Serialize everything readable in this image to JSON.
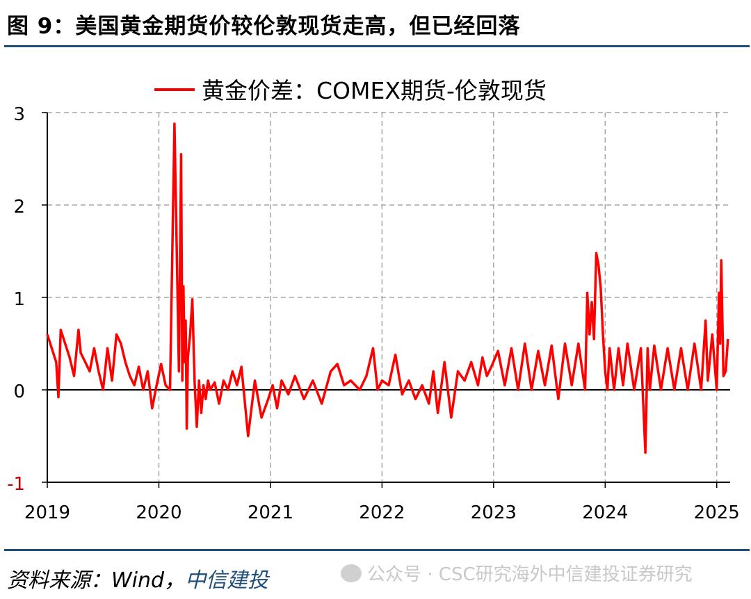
{
  "figure": {
    "title": "图 9：美国黄金期货价较伦敦现货走高，但已经回落"
  },
  "source": {
    "prefix": "资料来源：Wind，",
    "brand": "中信建投"
  },
  "watermark": {
    "text": "公众号 · CSC研究海外中信建投证券研究"
  },
  "colors": {
    "series": "#ff0000",
    "axis": "#000000",
    "grid": "#a6a6a6",
    "rule": "#1f4e79"
  },
  "chart_data": {
    "type": "line",
    "legend_position": "top-center",
    "grid": true,
    "ylim": [
      -1,
      3
    ],
    "yticks": [
      "3",
      "2",
      "1",
      "0",
      "-1"
    ],
    "xlim": [
      2019.0,
      2025.12
    ],
    "xticks": [
      "2019",
      "2020",
      "2021",
      "2022",
      "2023",
      "2024",
      "2025"
    ],
    "series": [
      {
        "name": "黄金价差：COMEX期货-伦敦现货",
        "x": [
          2019.0,
          2019.04,
          2019.08,
          2019.1,
          2019.12,
          2019.16,
          2019.2,
          2019.24,
          2019.28,
          2019.3,
          2019.34,
          2019.38,
          2019.42,
          2019.46,
          2019.5,
          2019.54,
          2019.58,
          2019.62,
          2019.66,
          2019.7,
          2019.74,
          2019.78,
          2019.82,
          2019.86,
          2019.9,
          2019.94,
          2019.98,
          2020.02,
          2020.06,
          2020.1,
          2020.14,
          2020.18,
          2020.2,
          2020.21,
          2020.22,
          2020.23,
          2020.24,
          2020.25,
          2020.26,
          2020.28,
          2020.3,
          2020.32,
          2020.34,
          2020.36,
          2020.38,
          2020.4,
          2020.42,
          2020.44,
          2020.46,
          2020.5,
          2020.54,
          2020.58,
          2020.62,
          2020.66,
          2020.7,
          2020.74,
          2020.8,
          2020.86,
          2020.92,
          2020.98,
          2021.02,
          2021.06,
          2021.1,
          2021.16,
          2021.22,
          2021.3,
          2021.38,
          2021.46,
          2021.54,
          2021.6,
          2021.66,
          2021.72,
          2021.8,
          2021.86,
          2021.92,
          2021.96,
          2022.0,
          2022.06,
          2022.12,
          2022.18,
          2022.24,
          2022.3,
          2022.36,
          2022.42,
          2022.46,
          2022.5,
          2022.56,
          2022.62,
          2022.68,
          2022.74,
          2022.8,
          2022.86,
          2022.9,
          2022.94,
          2022.98,
          2023.04,
          2023.1,
          2023.16,
          2023.22,
          2023.28,
          2023.34,
          2023.4,
          2023.46,
          2023.52,
          2023.58,
          2023.64,
          2023.7,
          2023.76,
          2023.82,
          2023.84,
          2023.86,
          2023.88,
          2023.9,
          2023.92,
          2023.94,
          2023.96,
          2023.98,
          2024.0,
          2024.02,
          2024.04,
          2024.08,
          2024.12,
          2024.16,
          2024.2,
          2024.26,
          2024.32,
          2024.36,
          2024.38,
          2024.4,
          2024.44,
          2024.5,
          2024.56,
          2024.62,
          2024.68,
          2024.74,
          2024.8,
          2024.86,
          2024.9,
          2024.92,
          2024.96,
          2025.0,
          2025.02,
          2025.03,
          2025.04,
          2025.06,
          2025.08,
          2025.1
        ],
        "values": [
          0.6,
          0.45,
          0.3,
          -0.08,
          0.65,
          0.5,
          0.35,
          0.15,
          0.65,
          0.4,
          0.3,
          0.2,
          0.45,
          0.2,
          0.0,
          0.45,
          0.1,
          0.6,
          0.5,
          0.3,
          0.15,
          0.05,
          0.25,
          0.0,
          0.2,
          -0.2,
          0.05,
          0.28,
          0.05,
          0.0,
          2.88,
          0.2,
          2.55,
          0.1,
          1.12,
          0.3,
          0.75,
          -0.42,
          0.35,
          0.6,
          0.98,
          0.1,
          -0.4,
          0.1,
          -0.25,
          0.05,
          -0.1,
          0.1,
          0.0,
          0.08,
          -0.15,
          0.1,
          0.0,
          0.2,
          0.05,
          0.25,
          -0.5,
          0.1,
          -0.3,
          -0.1,
          0.05,
          -0.2,
          0.1,
          -0.05,
          0.15,
          -0.1,
          0.1,
          -0.15,
          0.2,
          0.28,
          0.05,
          0.1,
          0.0,
          0.15,
          0.45,
          0.0,
          0.1,
          0.05,
          0.38,
          -0.05,
          0.1,
          -0.1,
          0.05,
          -0.15,
          0.2,
          -0.25,
          0.3,
          -0.3,
          0.2,
          0.1,
          0.3,
          0.05,
          0.35,
          0.15,
          0.25,
          0.42,
          0.05,
          0.45,
          0.0,
          0.5,
          0.0,
          0.42,
          0.05,
          0.48,
          -0.1,
          0.5,
          0.05,
          0.5,
          0.0,
          1.05,
          0.6,
          0.95,
          0.55,
          1.48,
          1.35,
          1.1,
          0.6,
          0.2,
          0.0,
          0.45,
          0.0,
          0.45,
          0.05,
          0.5,
          0.0,
          0.45,
          -0.68,
          0.45,
          0.0,
          0.48,
          0.0,
          0.45,
          0.0,
          0.45,
          0.0,
          0.5,
          0.0,
          0.75,
          0.1,
          0.6,
          0.0,
          1.05,
          0.5,
          1.4,
          0.15,
          0.2,
          0.55
        ]
      }
    ]
  }
}
